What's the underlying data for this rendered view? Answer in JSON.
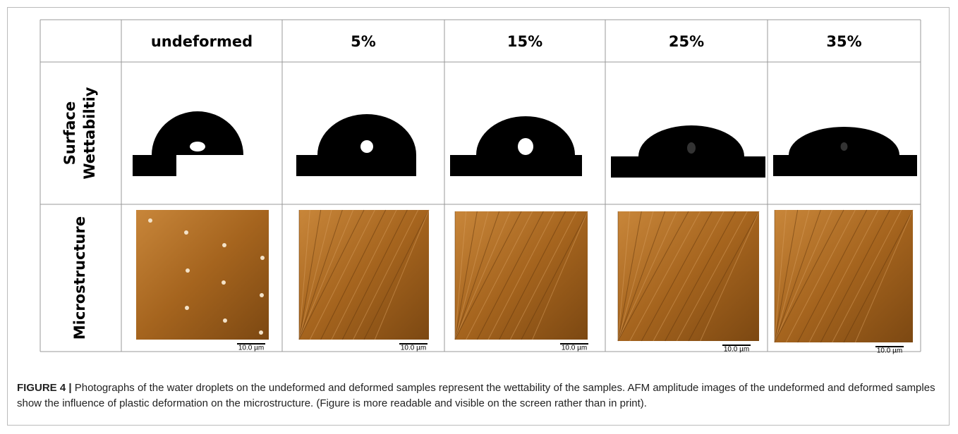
{
  "table": {
    "columns": [
      "undeformed",
      "5%",
      "15%",
      "25%",
      "35%"
    ],
    "rows": [
      {
        "label": [
          "Surface",
          "Wettabiltiy"
        ]
      },
      {
        "label": [
          "Microstructure"
        ]
      }
    ],
    "scale_bars": [
      "10.0 µm",
      "10.0 µm",
      "10.0 µm",
      "10.0 µm",
      "10.0 µm"
    ]
  },
  "caption": {
    "label": "FIGURE 4 |",
    "text": "Photographs of the water droplets on the undeformed and deformed samples represent the wettability of the samples. AFM amplitude images of the undeformed and deformed samples show the influence of plastic deformation on the microstructure. (Figure is more readable and visible on the screen rather than in print)."
  }
}
